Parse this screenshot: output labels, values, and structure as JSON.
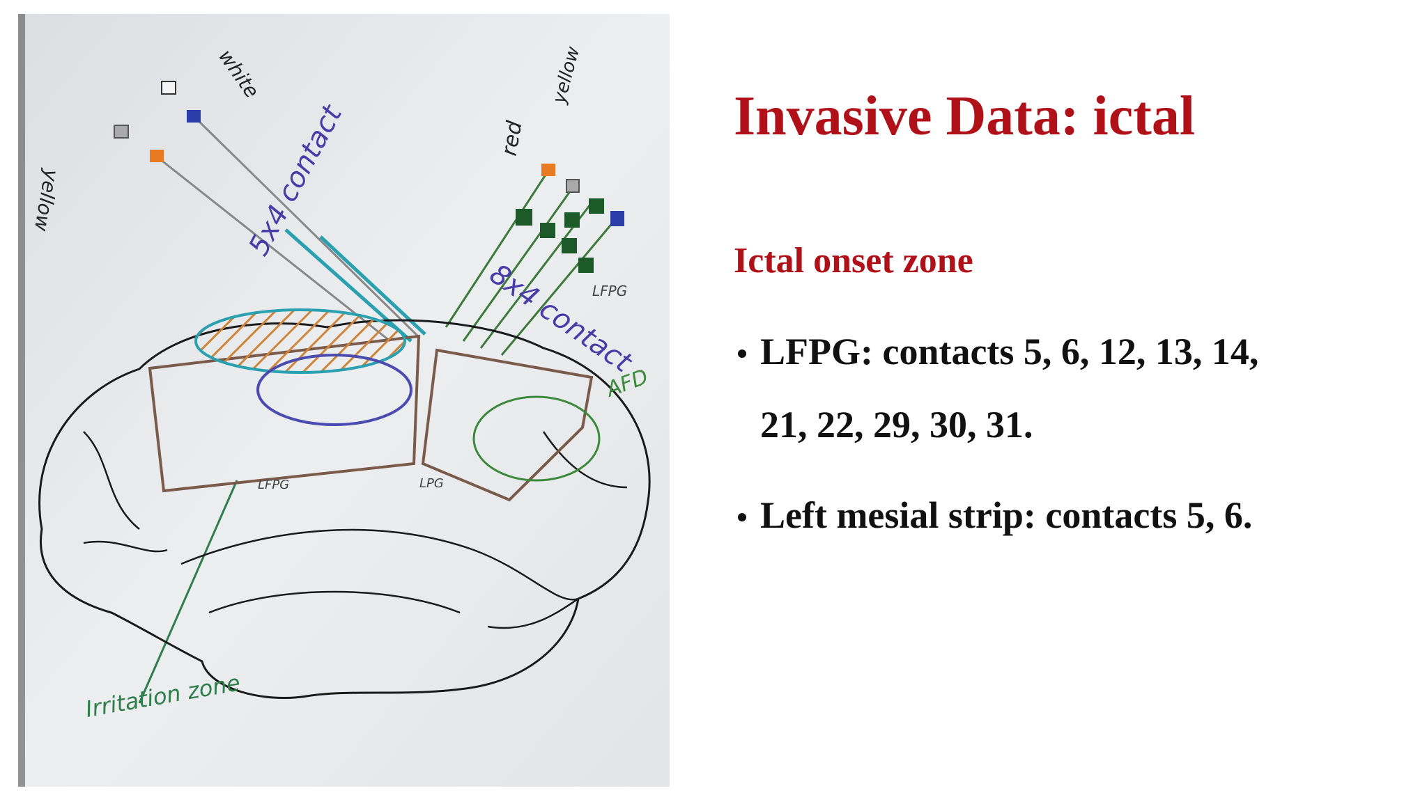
{
  "slide": {
    "title": "Invasive Data: ictal",
    "subtitle": "Ictal onset zone",
    "bullets": [
      {
        "lines": [
          "LFPG: contacts 5, 6, 12, 13, 14,",
          "21, 22, 29, 30, 31."
        ]
      },
      {
        "lines": [
          "Left mesial strip: contacts 5, 6."
        ]
      }
    ]
  },
  "figure": {
    "labels": [
      "white",
      "yellow",
      "5x4 contact",
      "red",
      "yellow",
      "8x4 contact",
      "LFPG",
      "AFD",
      "LFPG",
      "LPG",
      "Irritation zone"
    ]
  }
}
